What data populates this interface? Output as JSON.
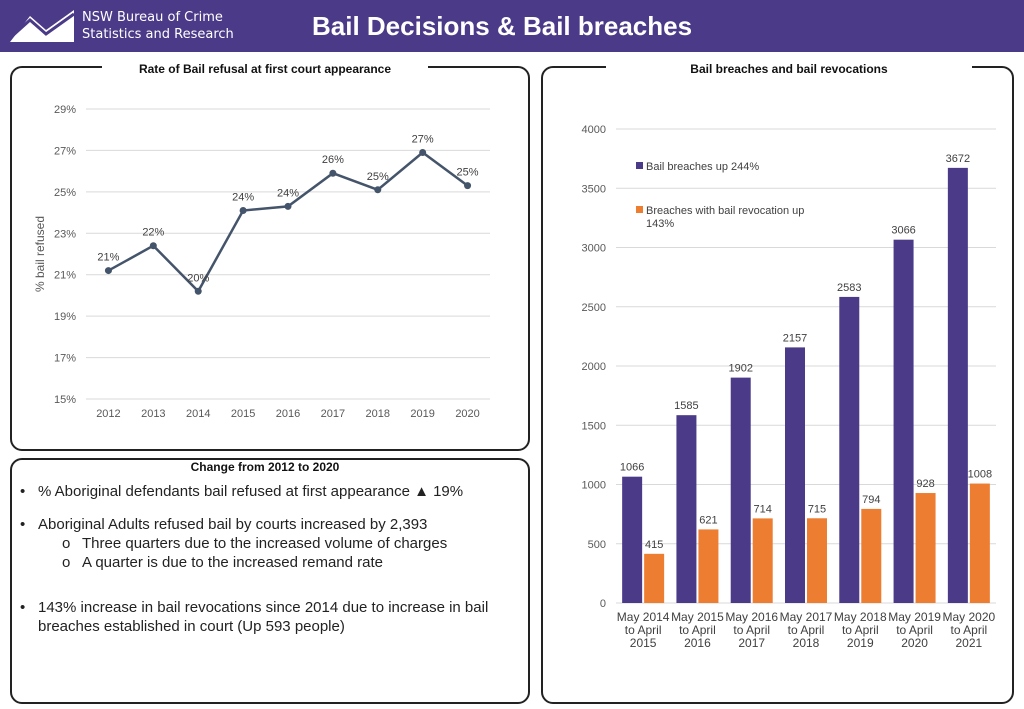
{
  "header": {
    "org_line1": "NSW Bureau of Crime",
    "org_line2": "Statistics and Research",
    "title": "Bail Decisions & Bail breaches",
    "bg_color": "#4b3a87"
  },
  "changes": {
    "title": "Change from 2012 to 2020",
    "bullet1": "% Aboriginal defendants bail refused at first appearance ▲ 19%",
    "bullet2": "Aboriginal Adults refused bail by courts increased by 2,393",
    "sub1": "Three quarters due to the increased volume of charges",
    "sub2": "A quarter is due to the increased remand rate",
    "bullet3_line1": "143% increase in bail revocations since 2014 due to increase in bail",
    "bullet3_line2": "breaches established in court (Up 593 people)",
    "bullet_char": "•",
    "sub_char": "o"
  },
  "chart_data": [
    {
      "type": "line",
      "title": "Rate of Bail refusal at first court appearance",
      "ylabel": "% bail refused",
      "xlabel": "",
      "x": [
        "2012",
        "2013",
        "2014",
        "2015",
        "2016",
        "2017",
        "2018",
        "2019",
        "2020"
      ],
      "values": [
        21.2,
        22.4,
        20.2,
        24.1,
        24.3,
        25.9,
        25.1,
        26.9,
        25.3
      ],
      "data_labels": [
        "21%",
        "22%",
        "20%",
        "24%",
        "24%",
        "26%",
        "25%",
        "27%",
        "25%"
      ],
      "yticks": [
        "15%",
        "17%",
        "19%",
        "21%",
        "23%",
        "25%",
        "27%",
        "29%"
      ],
      "ylim": [
        15,
        29
      ],
      "line_color": "#44546a"
    },
    {
      "type": "bar",
      "title": "Bail breaches and bail revocations",
      "categories": [
        [
          "May 2014",
          "to April",
          "2015"
        ],
        [
          "May 2015",
          "to April",
          "2016"
        ],
        [
          "May 2016",
          "to April",
          "2017"
        ],
        [
          "May 2017",
          "to April",
          "2018"
        ],
        [
          "May 2018",
          "to April",
          "2019"
        ],
        [
          "May 2019",
          "to April",
          "2020"
        ],
        [
          "May 2020",
          "to April",
          "2021"
        ]
      ],
      "series": [
        {
          "name": "Bail breaches up 244%",
          "values": [
            1066,
            1585,
            1902,
            2157,
            2583,
            3066,
            3672
          ],
          "color": "#4b3a87"
        },
        {
          "name": "Breaches with bail revocation up 143%",
          "name_line1": "Breaches with bail revocation up",
          "name_line2": "143%",
          "values": [
            415,
            621,
            714,
            715,
            794,
            928,
            1008
          ],
          "color": "#ed7d31"
        }
      ],
      "yticks": [
        "0",
        "500",
        "1000",
        "1500",
        "2000",
        "2500",
        "3000",
        "3500",
        "4000"
      ],
      "ylim": [
        0,
        4000
      ],
      "legend": "upper-left"
    }
  ]
}
